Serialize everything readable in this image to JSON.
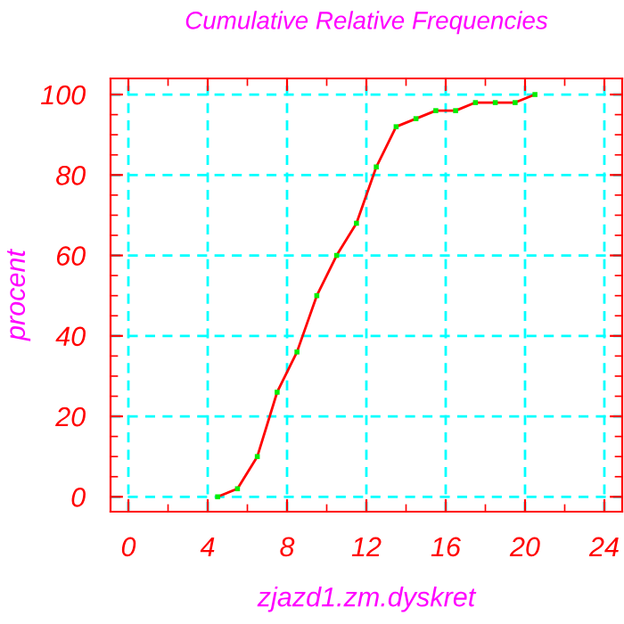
{
  "chart_data": {
    "type": "line",
    "title": "Cumulative Relative Frequencies",
    "xlabel": "zjazd1.zm.dyskret",
    "ylabel": "procent",
    "x": [
      4.5,
      5.5,
      6.5,
      7.5,
      8.5,
      9.5,
      10.5,
      11.5,
      12.5,
      13.5,
      14.5,
      15.5,
      16.5,
      17.5,
      18.5,
      19.5,
      20.5
    ],
    "series": [
      {
        "color": "#ff0000",
        "values": [
          0,
          2,
          10,
          26,
          36,
          50,
          60,
          68,
          82,
          92,
          94,
          96,
          96,
          98,
          98,
          98,
          100
        ]
      },
      {
        "type": "scatter",
        "color": "#00ee00",
        "marker": "square",
        "values": [
          0,
          2,
          10,
          26,
          36,
          50,
          60,
          68,
          82,
          92,
          94,
          96,
          96,
          98,
          98,
          98,
          100
        ]
      }
    ],
    "xlim": [
      -0.9,
      24.9
    ],
    "ylim": [
      -3.7,
      104
    ],
    "xticks": [
      0,
      4,
      8,
      12,
      16,
      20,
      24
    ],
    "yticks": [
      0,
      20,
      40,
      60,
      80,
      100
    ],
    "grid": true,
    "legend": false
  }
}
